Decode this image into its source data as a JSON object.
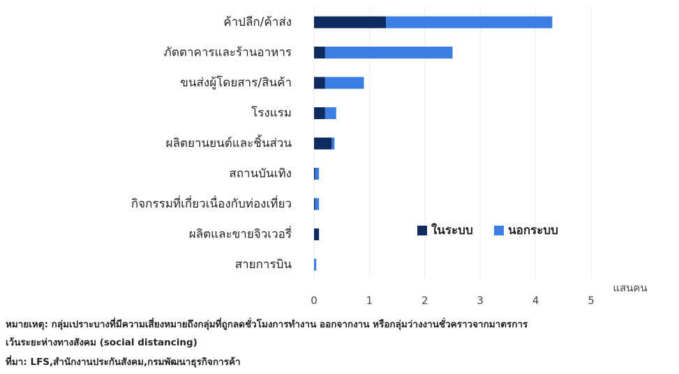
{
  "chart_data": {
    "type": "bar",
    "orientation": "horizontal",
    "stacked": true,
    "x_unit": "แสนคน",
    "categories": [
      "ค้าปลีก/ค้าส่ง",
      "ภัตตาคารและร้านอาหาร",
      "ขนส่งผู้โดยสาร/สินค้า",
      "โรงแรม",
      "ผลิตยานยนต์และชิ้นส่วน",
      "สถานบันเทิง",
      "กิจกรรมที่เกี่ยวเนื่องกับท่องเที่ยว",
      "ผลิตและขายจิวเวอรี่",
      "สายการบิน"
    ],
    "series": [
      {
        "name": "ในระบบ",
        "color": "#0f2a5e",
        "values": [
          1.3,
          0.2,
          0.2,
          0.2,
          0.32,
          0.02,
          0.02,
          0.09,
          0.0
        ]
      },
      {
        "name": "นอกระบบ",
        "color": "#3b7de0",
        "values": [
          3.0,
          2.3,
          0.7,
          0.2,
          0.05,
          0.07,
          0.07,
          0.0,
          0.04
        ]
      }
    ],
    "xlim": [
      0,
      5
    ],
    "xticks": [
      0,
      1,
      2,
      3,
      4,
      5
    ],
    "grid": true,
    "legend": "lower right",
    "notes": [
      "หมายเหตุ: กลุ่มเปราะบางที่มีความเสี่ยงหมายถึงกลุ่มที่ถูกลดชั่วโมงการทำงาน ออกจากงาน หรือกลุ่มว่างงานชั่วคราวจากมาตรการ",
      "เว้นระยะห่างทางสังคม (social distancing)",
      "ที่มา: LFS,สำนักงานประกันสังคม,กรมพัฒนาธุรกิจการค้า"
    ]
  }
}
